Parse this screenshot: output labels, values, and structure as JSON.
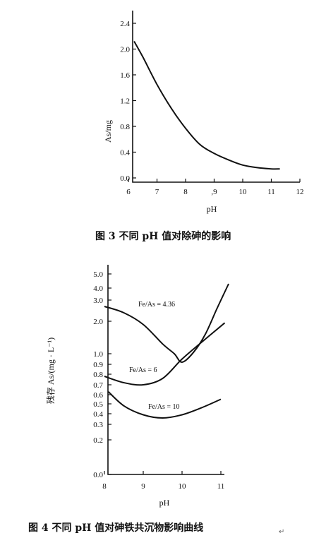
{
  "chart_data": [
    {
      "type": "line",
      "title": "",
      "caption": "图 3   不同 pH 值对除砷的影响",
      "xlabel": "pH",
      "ylabel": "As/mg",
      "xlim": [
        6,
        12
      ],
      "ylim": [
        0,
        2.4
      ],
      "x_ticks": [
        "6",
        "7",
        "8",
        ",9",
        "10",
        "11",
        "12"
      ],
      "y_ticks": [
        "0.0",
        "0.4",
        "0.8",
        "1.2",
        "1.6",
        "2.0",
        "2.4"
      ],
      "grid": false,
      "series": [
        {
          "x": [
            6.2,
            6.5,
            7.0,
            7.5,
            8.0,
            8.5,
            9.0,
            9.5,
            10.0,
            10.5,
            11.0,
            11.3
          ],
          "y": [
            2.12,
            1.88,
            1.45,
            1.08,
            0.77,
            0.52,
            0.38,
            0.28,
            0.2,
            0.16,
            0.14,
            0.14
          ]
        }
      ]
    },
    {
      "type": "line",
      "title": "",
      "caption": "图 4   不同 pH 值对砷铁共沉物影响曲线",
      "xlabel": "pH",
      "ylabel": "残存 As/(mg · L⁻¹)",
      "xlim": [
        8,
        11.3
      ],
      "y_ticks": [
        "0.0",
        "0.2",
        "0.3",
        "0.4",
        "0.5",
        "0.6",
        "0.7",
        "0.8",
        "0.9",
        "1.0",
        "2.0",
        "3.0",
        "4.0",
        "5.0"
      ],
      "x_ticks": [
        "8",
        "9",
        "10",
        "11"
      ],
      "grid": false,
      "series": [
        {
          "name": "Fe/As = 4.36",
          "x": [
            8.0,
            8.5,
            9.0,
            9.5,
            9.8,
            10.0,
            10.3,
            10.6,
            10.9,
            11.2
          ],
          "y": [
            2.7,
            2.4,
            1.9,
            1.3,
            1.0,
            0.92,
            1.05,
            1.6,
            2.6,
            4.3
          ]
        },
        {
          "name": "Fe/As = 6",
          "x": [
            8.0,
            8.5,
            9.0,
            9.5,
            10.0,
            10.5,
            11.1
          ],
          "y": [
            0.78,
            0.72,
            0.7,
            0.76,
            0.95,
            1.35,
            1.95
          ]
        },
        {
          "name": "Fe/As = 10",
          "x": [
            8.1,
            8.5,
            9.0,
            9.5,
            10.0,
            10.5,
            11.0
          ],
          "y": [
            0.63,
            0.48,
            0.39,
            0.36,
            0.39,
            0.46,
            0.55
          ]
        }
      ]
    }
  ],
  "trailing_mark": "↵"
}
